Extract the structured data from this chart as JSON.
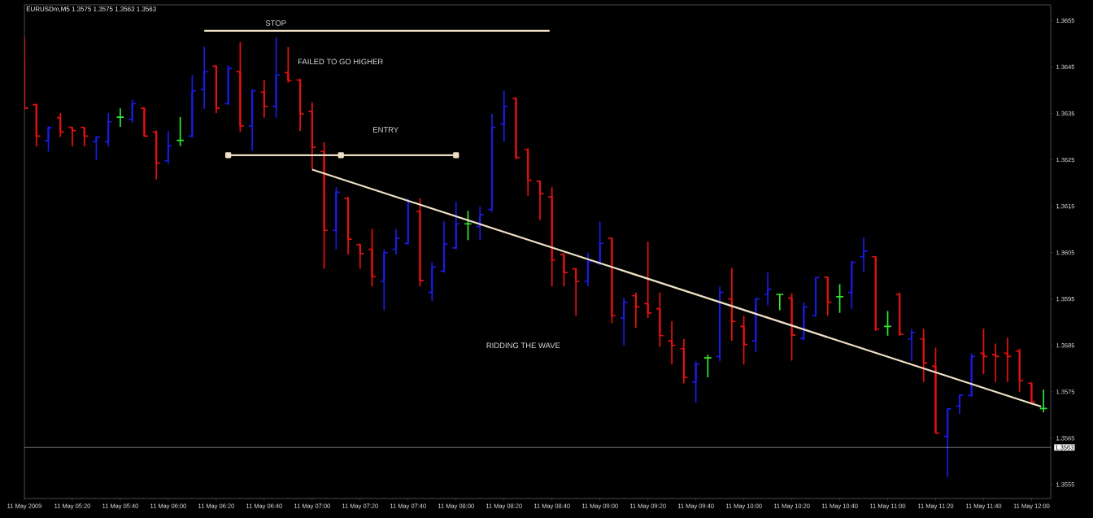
{
  "chart_data": {
    "type": "candlestick",
    "title": "EURUSDm,M5  1.3575 1.3575 1.3563 1.3563",
    "x": [
      "2009-05-11T05:00",
      "2009-05-11T05:05",
      "2009-05-11T05:10",
      "2009-05-11T05:15",
      "2009-05-11T05:20",
      "2009-05-11T05:25",
      "2009-05-11T05:30",
      "2009-05-11T05:35",
      "2009-05-11T05:40",
      "2009-05-11T05:45",
      "2009-05-11T05:50",
      "2009-05-11T05:55",
      "2009-05-11T06:00",
      "2009-05-11T06:05",
      "2009-05-11T06:10",
      "2009-05-11T06:15",
      "2009-05-11T06:20",
      "2009-05-11T06:25",
      "2009-05-11T06:30",
      "2009-05-11T06:35",
      "2009-05-11T06:40",
      "2009-05-11T06:45",
      "2009-05-11T06:50",
      "2009-05-11T06:55",
      "2009-05-11T07:00",
      "2009-05-11T07:05",
      "2009-05-11T07:10",
      "2009-05-11T07:15",
      "2009-05-11T07:20",
      "2009-05-11T07:25",
      "2009-05-11T07:30",
      "2009-05-11T07:35",
      "2009-05-11T07:40",
      "2009-05-11T07:45",
      "2009-05-11T07:50",
      "2009-05-11T07:55",
      "2009-05-11T08:00",
      "2009-05-11T08:05",
      "2009-05-11T08:10",
      "2009-05-11T08:15",
      "2009-05-11T08:20",
      "2009-05-11T08:25",
      "2009-05-11T08:30",
      "2009-05-11T08:35",
      "2009-05-11T08:40",
      "2009-05-11T08:45",
      "2009-05-11T08:50",
      "2009-05-11T08:55",
      "2009-05-11T09:00",
      "2009-05-11T09:05",
      "2009-05-11T09:10",
      "2009-05-11T09:15",
      "2009-05-11T09:20",
      "2009-05-11T09:25",
      "2009-05-11T09:30",
      "2009-05-11T09:35",
      "2009-05-11T09:40",
      "2009-05-11T09:45",
      "2009-05-11T09:50",
      "2009-05-11T09:55",
      "2009-05-11T10:00",
      "2009-05-11T10:05",
      "2009-05-11T10:10",
      "2009-05-11T10:15",
      "2009-05-11T10:20",
      "2009-05-11T10:25",
      "2009-05-11T10:30",
      "2009-05-11T10:35",
      "2009-05-11T10:40",
      "2009-05-11T10:45",
      "2009-05-11T10:50",
      "2009-05-11T10:55",
      "2009-05-11T11:00",
      "2009-05-11T11:05",
      "2009-05-11T11:10",
      "2009-05-11T11:15",
      "2009-05-11T11:20",
      "2009-05-11T11:25",
      "2009-05-11T11:30",
      "2009-05-11T11:35",
      "2009-05-11T11:40",
      "2009-05-11T11:45",
      "2009-05-11T11:50",
      "2009-05-11T11:55",
      "2009-05-11T12:00",
      "2009-05-11T12:05"
    ],
    "ohlc": [
      [
        1.36464,
        1.36516,
        1.36361,
        1.36361
      ],
      [
        1.36369,
        1.36371,
        1.36279,
        1.36301
      ],
      [
        1.36291,
        1.36323,
        1.36268,
        1.36319
      ],
      [
        1.36341,
        1.36351,
        1.36299,
        1.3631
      ],
      [
        1.3632,
        1.36321,
        1.36279,
        1.36313
      ],
      [
        1.3632,
        1.36321,
        1.36279,
        1.36301
      ],
      [
        1.36289,
        1.36301,
        1.3625,
        1.36299
      ],
      [
        1.36289,
        1.36351,
        1.36279,
        1.36332
      ],
      [
        1.36342,
        1.36361,
        1.36321,
        1.36342
      ],
      [
        1.36337,
        1.3638,
        1.3633,
        1.36371
      ],
      [
        1.36361,
        1.36363,
        1.36299,
        1.36301
      ],
      [
        1.3631,
        1.36313,
        1.36208,
        1.36243
      ],
      [
        1.36248,
        1.36312,
        1.36241,
        1.3628
      ],
      [
        1.36292,
        1.36342,
        1.3628,
        1.36292
      ],
      [
        1.36301,
        1.36433,
        1.36298,
        1.36399
      ],
      [
        1.36402,
        1.36494,
        1.3636,
        1.3644
      ],
      [
        1.36452,
        1.36454,
        1.36351,
        1.36361
      ],
      [
        1.36371,
        1.36454,
        1.36368,
        1.36447
      ],
      [
        1.3644,
        1.36504,
        1.3631,
        1.36323
      ],
      [
        1.36323,
        1.36402,
        1.3627,
        1.36399
      ],
      [
        1.36396,
        1.36422,
        1.36341,
        1.36365
      ],
      [
        1.36365,
        1.36514,
        1.36341,
        1.36433
      ],
      [
        1.36438,
        1.36493,
        1.36416,
        1.36421
      ],
      [
        1.36422,
        1.36425,
        1.36312,
        1.36349
      ],
      [
        1.36354,
        1.36374,
        1.3623,
        1.36277
      ],
      [
        1.36268,
        1.36288,
        1.36015,
        1.36098
      ],
      [
        1.36098,
        1.36191,
        1.36057,
        1.3618
      ],
      [
        1.36167,
        1.3617,
        1.36046,
        1.36079
      ],
      [
        1.36067,
        1.36069,
        1.36015,
        1.36048
      ],
      [
        1.36057,
        1.36101,
        1.35977,
        1.35998
      ],
      [
        1.35988,
        1.36057,
        1.35926,
        1.3605
      ],
      [
        1.36057,
        1.36101,
        1.36046,
        1.36081
      ],
      [
        1.3607,
        1.36167,
        1.36067,
        1.3616
      ],
      [
        1.36139,
        1.36168,
        1.35977,
        1.3599
      ],
      [
        1.35964,
        1.36029,
        1.35946,
        1.36019
      ],
      [
        1.3601,
        1.36118,
        1.36007,
        1.36069
      ],
      [
        1.3606,
        1.3616,
        1.36057,
        1.36112
      ],
      [
        1.36112,
        1.3614,
        1.36077,
        1.36112
      ],
      [
        1.36106,
        1.36149,
        1.36077,
        1.36132
      ],
      [
        1.36143,
        1.36349,
        1.36138,
        1.3632
      ],
      [
        1.36327,
        1.36399,
        1.36289,
        1.36365
      ],
      [
        1.36382,
        1.36385,
        1.36251,
        1.36255
      ],
      [
        1.36272,
        1.36275,
        1.36172,
        1.36206
      ],
      [
        1.36204,
        1.36206,
        1.3612,
        1.36177
      ],
      [
        1.3617,
        1.36191,
        1.35977,
        1.36034
      ],
      [
        1.36046,
        1.3605,
        1.35977,
        1.36007
      ],
      [
        1.36015,
        1.36017,
        1.35914,
        1.35988
      ],
      [
        1.35988,
        1.3605,
        1.35977,
        1.36031
      ],
      [
        1.36027,
        1.36117,
        1.36023,
        1.3607
      ],
      [
        1.36081,
        1.36082,
        1.35898,
        1.35914
      ],
      [
        1.35909,
        1.35953,
        1.3585,
        1.35943
      ],
      [
        1.35957,
        1.35964,
        1.35888,
        1.35933
      ],
      [
        1.3594,
        1.36074,
        1.35909,
        1.3592
      ],
      [
        1.35929,
        1.35964,
        1.35847,
        1.35871
      ],
      [
        1.3586,
        1.35902,
        1.35809,
        1.3585
      ],
      [
        1.35843,
        1.35864,
        1.35768,
        1.35781
      ],
      [
        1.35771,
        1.35816,
        1.35726,
        1.3581
      ],
      [
        1.35823,
        1.3583,
        1.35781,
        1.35823
      ],
      [
        1.35826,
        1.35977,
        1.35816,
        1.35964
      ],
      [
        1.3595,
        1.36017,
        1.3586,
        1.35902
      ],
      [
        1.35891,
        1.35914,
        1.35809,
        1.35852
      ],
      [
        1.3586,
        1.35953,
        1.35836,
        1.3595
      ],
      [
        1.3596,
        1.36007,
        1.35936,
        1.35971
      ],
      [
        1.3596,
        1.3596,
        1.35926,
        1.3596
      ],
      [
        1.35952,
        1.35962,
        1.35817,
        1.35872
      ],
      [
        1.35865,
        1.35943,
        1.3586,
        1.35933
      ],
      [
        1.35914,
        1.35998,
        1.35912,
        1.35996
      ],
      [
        1.35997,
        1.35998,
        1.35914,
        1.35943
      ],
      [
        1.35955,
        1.35982,
        1.3592,
        1.35955
      ],
      [
        1.35964,
        1.36032,
        1.35929,
        1.36029
      ],
      [
        1.36041,
        1.36083,
        1.36008,
        1.36053
      ],
      [
        1.36041,
        1.36043,
        1.35881,
        1.35885
      ],
      [
        1.35891,
        1.35924,
        1.35871,
        1.35891
      ],
      [
        1.3596,
        1.35964,
        1.35871,
        1.35874
      ],
      [
        1.35864,
        1.35885,
        1.35816,
        1.35878
      ],
      [
        1.35864,
        1.35886,
        1.35771,
        1.35812
      ],
      [
        1.35805,
        1.35845,
        1.35661,
        1.35661
      ],
      [
        1.35654,
        1.35714,
        1.35567,
        1.35713
      ],
      [
        1.35719,
        1.35744,
        1.35702,
        1.35743
      ],
      [
        1.35742,
        1.35833,
        1.35739,
        1.35826
      ],
      [
        1.35833,
        1.35886,
        1.35788,
        1.35826
      ],
      [
        1.3583,
        1.35854,
        1.35771,
        1.35826
      ],
      [
        1.35833,
        1.35867,
        1.35771,
        1.35826
      ],
      [
        1.35838,
        1.35843,
        1.3575,
        1.35774
      ],
      [
        1.35768,
        1.35771,
        1.35726,
        1.35728
      ],
      [
        1.35714,
        1.35755,
        1.35706,
        1.35714
      ]
    ],
    "colors": [
      "#e81010",
      "#e81010",
      "#1a1ae6",
      "#e81010",
      "#e81010",
      "#e81010",
      "#1a1ae6",
      "#1a1ae6",
      "#33e633",
      "#1a1ae6",
      "#e81010",
      "#e81010",
      "#1a1ae6",
      "#33e633",
      "#1a1ae6",
      "#1a1ae6",
      "#e81010",
      "#1a1ae6",
      "#e81010",
      "#1a1ae6",
      "#e81010",
      "#1a1ae6",
      "#e81010",
      "#e81010",
      "#e81010",
      "#e81010",
      "#1a1ae6",
      "#e81010",
      "#e81010",
      "#e81010",
      "#1a1ae6",
      "#1a1ae6",
      "#1a1ae6",
      "#e81010",
      "#1a1ae6",
      "#1a1ae6",
      "#1a1ae6",
      "#33e633",
      "#1a1ae6",
      "#1a1ae6",
      "#1a1ae6",
      "#e81010",
      "#e81010",
      "#e81010",
      "#e81010",
      "#e81010",
      "#e81010",
      "#1a1ae6",
      "#1a1ae6",
      "#e81010",
      "#1a1ae6",
      "#e81010",
      "#e81010",
      "#e81010",
      "#e81010",
      "#e81010",
      "#1a1ae6",
      "#33e633",
      "#1a1ae6",
      "#e81010",
      "#e81010",
      "#1a1ae6",
      "#1a1ae6",
      "#33e633",
      "#e81010",
      "#1a1ae6",
      "#1a1ae6",
      "#e81010",
      "#33e633",
      "#1a1ae6",
      "#1a1ae6",
      "#e81010",
      "#33e633",
      "#e81010",
      "#1a1ae6",
      "#e81010",
      "#e81010",
      "#1a1ae6",
      "#1a1ae6",
      "#1a1ae6",
      "#e81010",
      "#e81010",
      "#e81010",
      "#e81010",
      "#e81010",
      "#33e633"
    ],
    "series": [
      {
        "type": "line",
        "x": [
          "2009-05-11T06:15",
          "2009-05-11T08:39"
        ],
        "values": [
          1.36528,
          1.36528
        ],
        "color": "#eee0c4"
      },
      {
        "type": "line",
        "x": [
          "2009-05-11T06:25",
          "2009-05-11T07:12",
          "2009-05-11T08:00"
        ],
        "values": [
          1.3626,
          1.3626,
          1.3626
        ],
        "color": "#eee0c4",
        "marker": "square"
      },
      {
        "type": "line",
        "x": [
          "2009-05-11T07:00",
          "2009-05-11T12:04"
        ],
        "values": [
          1.36229,
          1.35718
        ],
        "color": "#eee0c4"
      }
    ],
    "annotations": [
      "STOP",
      "FAILED TO GO HIGHER",
      "ENTRY",
      "RIDDING THE WAVE"
    ],
    "ref_lines": [
      {
        "axis": "y",
        "value": 1.3563,
        "label": "1.3563",
        "color": "#c0c0c0"
      }
    ],
    "xlim": [
      "2009-05-11T05:00",
      "2009-05-11T12:08"
    ],
    "ylim": [
      1.3552,
      1.36584
    ],
    "xticks": [
      {
        "value": "2009-05-11T05:00",
        "label": "11 May 2009"
      },
      {
        "value": "2009-05-11T05:20",
        "label": "11 May 05:20"
      },
      {
        "value": "2009-05-11T05:40",
        "label": "11 May 05:40"
      },
      {
        "value": "2009-05-11T06:00",
        "label": "11 May 06:00"
      },
      {
        "value": "2009-05-11T06:20",
        "label": "11 May 06:20"
      },
      {
        "value": "2009-05-11T06:40",
        "label": "11 May 06:40"
      },
      {
        "value": "2009-05-11T07:00",
        "label": "11 May 07:00"
      },
      {
        "value": "2009-05-11T07:20",
        "label": "11 May 07:20"
      },
      {
        "value": "2009-05-11T07:40",
        "label": "11 May 07:40"
      },
      {
        "value": "2009-05-11T08:00",
        "label": "11 May 08:00"
      },
      {
        "value": "2009-05-11T08:20",
        "label": "11 May 08:20"
      },
      {
        "value": "2009-05-11T08:40",
        "label": "11 May 08:40"
      },
      {
        "value": "2009-05-11T09:00",
        "label": "11 May 09:00"
      },
      {
        "value": "2009-05-11T09:20",
        "label": "11 May 09:20"
      },
      {
        "value": "2009-05-11T09:40",
        "label": "11 May 09:40"
      },
      {
        "value": "2009-05-11T10:00",
        "label": "11 May 10:00"
      },
      {
        "value": "2009-05-11T10:20",
        "label": "11 May 10:20"
      },
      {
        "value": "2009-05-11T10:40",
        "label": "11 May 10:40"
      },
      {
        "value": "2009-05-11T11:00",
        "label": "11 May 11:00"
      },
      {
        "value": "2009-05-11T11:20",
        "label": "11 May 11:20"
      },
      {
        "value": "2009-05-11T11:40",
        "label": "11 May 11:40"
      },
      {
        "value": "2009-05-11T12:00",
        "label": "11 May 12:00"
      }
    ],
    "yticks": [
      {
        "value": 1.3555,
        "label": "1.3555"
      },
      {
        "value": 1.3565,
        "label": "1.3565"
      },
      {
        "value": 1.3575,
        "label": "1.3575"
      },
      {
        "value": 1.3585,
        "label": "1.3585"
      },
      {
        "value": 1.3595,
        "label": "1.3595"
      },
      {
        "value": 1.3605,
        "label": "1.3605"
      },
      {
        "value": 1.3615,
        "label": "1.3615"
      },
      {
        "value": 1.3625,
        "label": "1.3625"
      },
      {
        "value": 1.3635,
        "label": "1.3635"
      },
      {
        "value": 1.3645,
        "label": "1.3645"
      },
      {
        "value": 1.3655,
        "label": "1.3655"
      }
    ]
  }
}
